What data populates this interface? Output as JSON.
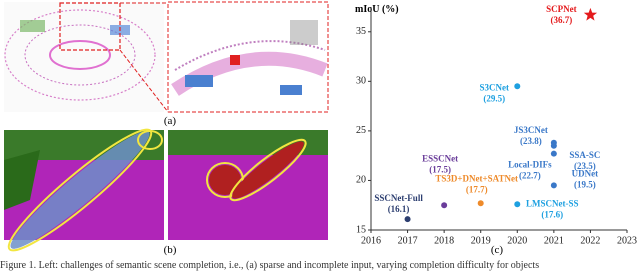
{
  "figure": {
    "panel_labels": [
      "(a)",
      "(b)",
      "(c)"
    ],
    "caption": "Figure 1. Left: challenges of semantic scene completion, i.e., (a) sparse and incomplete input, varying completion difficulty for objects"
  },
  "chart_data": {
    "type": "scatter",
    "y_label": "mIoU (%)",
    "labels": [
      "SCPNet",
      "S3CNet",
      "JS3CNet",
      "Local-DIFs",
      "SSA-SC",
      "UDNet",
      "ESSCNet",
      "TS3D+DNet+SATNet",
      "LMSCNet-SS",
      "SSCNet-Full"
    ],
    "x": [
      2022,
      2020,
      2021,
      2021,
      2021,
      2021,
      2018,
      2019,
      2020,
      2017
    ],
    "values": [
      36.7,
      29.5,
      23.8,
      22.7,
      23.5,
      19.5,
      17.5,
      17.7,
      17.6,
      16.1
    ],
    "value_labels": [
      "(36.7)",
      "(29.5)",
      "(23.8)",
      "(22.7)",
      "(23.5)",
      "(19.5)",
      "(17.5)",
      "(17.7)",
      "(17.6)",
      "(16.1)"
    ],
    "colors": [
      "#e41a1c",
      "#1ea0e0",
      "#3a78c8",
      "#3a78c8",
      "#3a78c8",
      "#3a78c8",
      "#6a3d9a",
      "#ee8a2a",
      "#1ea0e0",
      "#2c3e70"
    ],
    "xlim": [
      2016,
      2023
    ],
    "ylim": [
      15,
      37.5
    ],
    "xticks": [
      2016,
      2017,
      2018,
      2019,
      2020,
      2021,
      2022,
      2023
    ],
    "yticks": [
      15,
      20,
      25,
      30,
      35
    ]
  }
}
